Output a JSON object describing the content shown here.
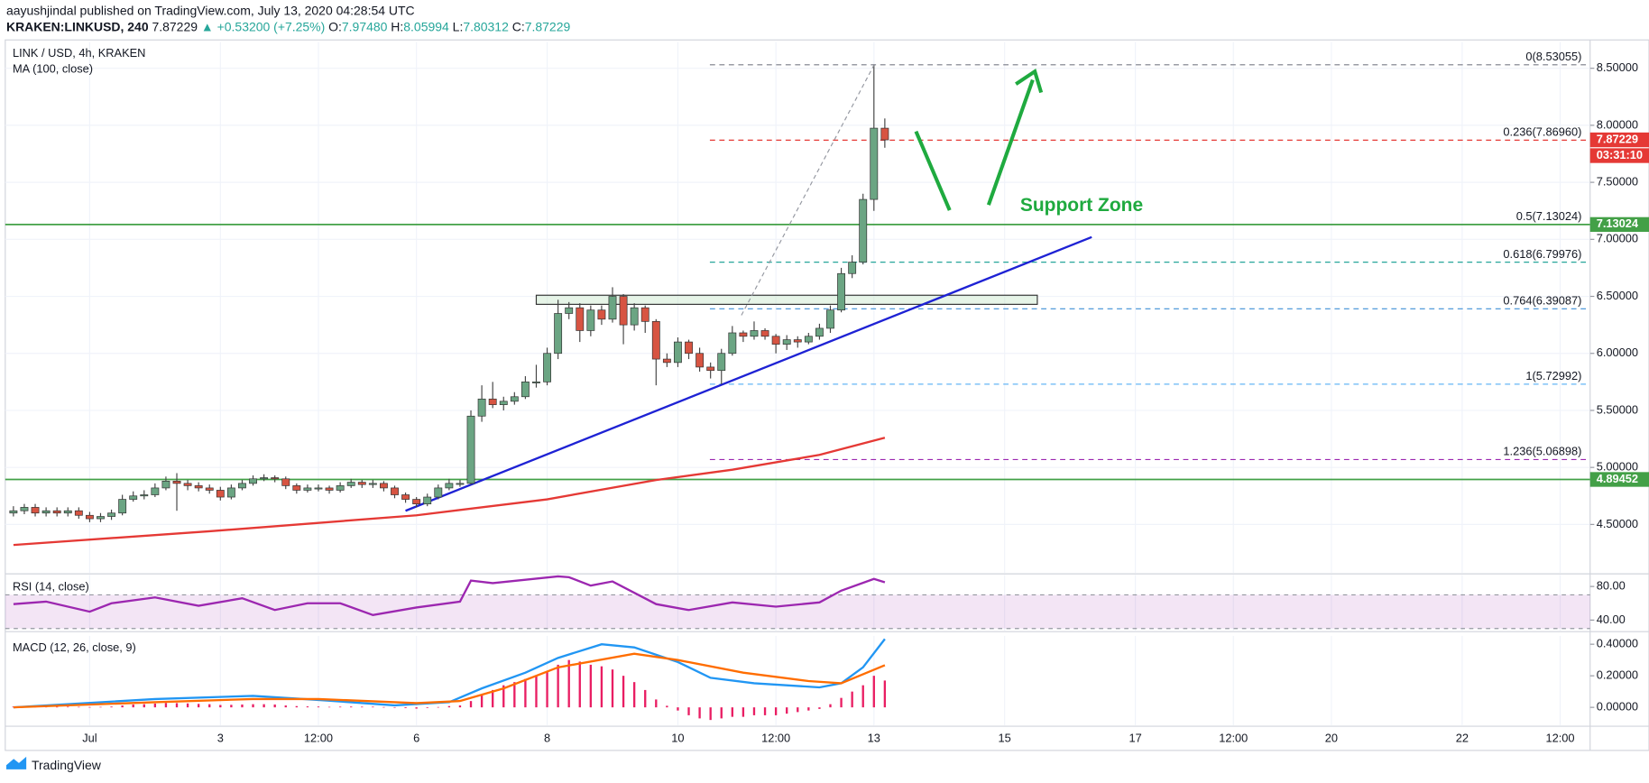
{
  "header": {
    "published": "aayushjindal published on TradingView.com, July 13, 2020 04:28:54 UTC",
    "symbol": "KRAKEN:LINKUSD, 240",
    "price": "7.87229",
    "change": "▲ +0.53200 (+7.25%)",
    "ohlc": [
      {
        "key": "O:",
        "value": "7.97480"
      },
      {
        "key": "H:",
        "value": "8.05994"
      },
      {
        "key": "L:",
        "value": "7.80312"
      },
      {
        "key": "C:",
        "value": "7.87229"
      }
    ]
  },
  "footer": "TradingView",
  "chart_data": [
    {
      "type": "candlestick",
      "title": "LINK / USD, 4h, KRAKEN",
      "annotation": "Support Zone",
      "up_color": "#6ba583",
      "down_color": "#d75442",
      "grid": true,
      "xlim": [
        -31,
        551
      ],
      "ylim": [
        4.076,
        8.73
      ],
      "xticks": [
        {
          "value": 0,
          "label": "Jul"
        },
        {
          "value": 48,
          "label": "3"
        },
        {
          "value": 84,
          "label": "12:00"
        },
        {
          "value": 120,
          "label": "6"
        },
        {
          "value": 168,
          "label": "8"
        },
        {
          "value": 216,
          "label": "10"
        },
        {
          "value": 252,
          "label": "12:00"
        },
        {
          "value": 288,
          "label": "13"
        },
        {
          "value": 336,
          "label": "15"
        },
        {
          "value": 384,
          "label": "17"
        },
        {
          "value": 420,
          "label": "12:00"
        },
        {
          "value": 456,
          "label": "20"
        },
        {
          "value": 504,
          "label": "22"
        },
        {
          "value": 540,
          "label": "12:00"
        }
      ],
      "yticks": [
        {
          "value": 4.5,
          "label": "4.50000"
        },
        {
          "value": 5,
          "label": "5.00000"
        },
        {
          "value": 5.5,
          "label": "5.50000"
        },
        {
          "value": 6,
          "label": "6.00000"
        },
        {
          "value": 6.5,
          "label": "6.50000"
        },
        {
          "value": 7,
          "label": "7.00000"
        },
        {
          "value": 7.5,
          "label": "7.50000"
        },
        {
          "value": 8,
          "label": "8.00000"
        },
        {
          "value": 8.5,
          "label": "8.50000"
        }
      ],
      "x": [
        -28,
        -24,
        -20,
        -16,
        -12,
        -8,
        -4,
        0,
        4,
        8,
        12,
        16,
        20,
        24,
        28,
        32,
        36,
        40,
        44,
        48,
        52,
        56,
        60,
        64,
        68,
        72,
        76,
        80,
        84,
        88,
        92,
        96,
        100,
        104,
        108,
        112,
        116,
        120,
        124,
        128,
        132,
        136,
        140,
        144,
        148,
        152,
        156,
        160,
        164,
        168,
        172,
        176,
        180,
        184,
        188,
        192,
        196,
        200,
        204,
        208,
        212,
        216,
        220,
        224,
        228,
        232,
        236,
        240,
        244,
        248,
        252,
        256,
        260,
        264,
        268,
        272,
        276,
        280,
        284,
        288,
        292
      ],
      "open": [
        4.6,
        4.62,
        4.65,
        4.6,
        4.62,
        4.6,
        4.62,
        4.58,
        4.55,
        4.57,
        4.6,
        4.72,
        4.75,
        4.76,
        4.82,
        4.88,
        4.86,
        4.84,
        4.82,
        4.8,
        4.74,
        4.82,
        4.86,
        4.9,
        4.91,
        4.9,
        4.84,
        4.8,
        4.82,
        4.82,
        4.8,
        4.84,
        4.87,
        4.85,
        4.86,
        4.82,
        4.76,
        4.72,
        4.68,
        4.74,
        4.82,
        4.86,
        4.86,
        5.45,
        5.6,
        5.55,
        5.58,
        5.62,
        5.75,
        5.75,
        6.0,
        6.35,
        6.4,
        6.2,
        6.38,
        6.3,
        6.5,
        6.25,
        6.4,
        6.28,
        5.95,
        5.92,
        6.1,
        6.0,
        5.88,
        5.85,
        6.0,
        6.18,
        6.15,
        6.2,
        6.15,
        6.08,
        6.12,
        6.1,
        6.15,
        6.22,
        6.38,
        6.7,
        6.8,
        7.35,
        7.9748
      ],
      "high": [
        4.66,
        4.68,
        4.68,
        4.65,
        4.65,
        4.65,
        4.65,
        4.61,
        4.6,
        4.63,
        4.76,
        4.79,
        4.8,
        4.86,
        4.92,
        4.95,
        4.89,
        4.87,
        4.85,
        4.83,
        4.85,
        4.89,
        4.93,
        4.94,
        4.93,
        4.92,
        4.86,
        4.85,
        4.85,
        4.84,
        4.87,
        4.9,
        4.89,
        4.89,
        4.88,
        4.84,
        4.78,
        4.74,
        4.77,
        4.85,
        4.9,
        4.89,
        5.5,
        5.72,
        5.75,
        5.62,
        5.66,
        5.8,
        5.9,
        6.05,
        6.47,
        6.45,
        6.44,
        6.42,
        6.42,
        6.58,
        6.52,
        6.44,
        6.42,
        6.3,
        6.0,
        6.14,
        6.12,
        6.05,
        5.92,
        6.04,
        6.24,
        6.2,
        6.28,
        6.22,
        6.17,
        6.16,
        6.15,
        6.18,
        6.26,
        6.42,
        6.75,
        6.86,
        7.4,
        8.53055,
        8.05994
      ],
      "low": [
        4.57,
        4.59,
        4.57,
        4.57,
        4.57,
        4.57,
        4.55,
        4.52,
        4.52,
        4.54,
        4.58,
        4.7,
        4.72,
        4.74,
        4.8,
        4.62,
        4.8,
        4.79,
        4.77,
        4.71,
        4.72,
        4.8,
        4.84,
        4.88,
        4.87,
        4.81,
        4.77,
        4.78,
        4.79,
        4.77,
        4.78,
        4.82,
        4.82,
        4.82,
        4.79,
        4.73,
        4.69,
        4.65,
        4.66,
        4.72,
        4.8,
        4.83,
        4.85,
        5.4,
        5.52,
        5.5,
        5.55,
        5.6,
        5.7,
        5.72,
        5.95,
        6.3,
        6.1,
        6.15,
        6.25,
        6.27,
        6.08,
        6.2,
        6.18,
        5.72,
        5.88,
        5.88,
        5.95,
        5.84,
        5.78,
        5.73,
        5.98,
        6.1,
        6.12,
        6.12,
        6.0,
        6.03,
        6.05,
        6.08,
        6.12,
        6.18,
        6.36,
        6.66,
        6.78,
        7.25,
        7.80312
      ],
      "close": [
        4.62,
        4.65,
        4.6,
        4.62,
        4.6,
        4.62,
        4.58,
        4.55,
        4.57,
        4.6,
        4.72,
        4.75,
        4.76,
        4.82,
        4.88,
        4.86,
        4.84,
        4.82,
        4.8,
        4.74,
        4.82,
        4.86,
        4.9,
        4.91,
        4.9,
        4.84,
        4.8,
        4.82,
        4.82,
        4.8,
        4.84,
        4.87,
        4.85,
        4.86,
        4.82,
        4.76,
        4.72,
        4.68,
        4.74,
        4.82,
        4.86,
        4.86,
        5.45,
        5.6,
        5.55,
        5.58,
        5.62,
        5.75,
        5.75,
        6.0,
        6.35,
        6.4,
        6.2,
        6.38,
        6.3,
        6.5,
        6.25,
        6.4,
        6.28,
        5.95,
        5.92,
        6.1,
        6.0,
        5.88,
        5.85,
        6.0,
        6.18,
        6.15,
        6.2,
        6.15,
        6.08,
        6.12,
        6.1,
        6.15,
        6.22,
        6.38,
        6.7,
        6.8,
        7.35,
        7.9748,
        7.87229
      ],
      "series": [
        {
          "type": "line",
          "name": "MA (100, close)",
          "color": "#e53935",
          "x": [
            -28,
            44,
            120,
            168,
            208,
            236,
            268,
            292
          ],
          "values": [
            4.32,
            4.44,
            4.58,
            4.72,
            4.89,
            4.98,
            5.11,
            5.26
          ]
        },
        {
          "type": "line",
          "color": "#1e22d4",
          "x": [
            116,
            368
          ],
          "values": [
            4.62,
            7.02
          ]
        }
      ],
      "zone": {
        "x": [
          164,
          348
        ],
        "values": [
          6.43,
          6.51
        ]
      },
      "hlines": [
        {
          "value": 7.13024,
          "color": "#43a047"
        },
        {
          "value": 4.89452,
          "color": "#43a047"
        }
      ],
      "fib": [
        {
          "label": "0(8.53055)",
          "value": 8.53055,
          "color": "#787b86"
        },
        {
          "label": "0.236(7.86960)",
          "value": 7.8696,
          "color": "#e53935"
        },
        {
          "label": "0.5(7.13024)",
          "value": 7.13024,
          "color": "#4caf50"
        },
        {
          "label": "0.618(6.79976)",
          "value": 6.79976,
          "color": "#26a69a"
        },
        {
          "label": "0.764(6.39087)",
          "value": 6.39087,
          "color": "#3d8fd6"
        },
        {
          "label": "1(5.72992)",
          "value": 5.72992,
          "color": "#64b5f6"
        },
        {
          "label": "1.236(5.06898)",
          "value": 5.06898,
          "color": "#9c27b0"
        }
      ],
      "price_labels": [
        {
          "value": 7.87229,
          "color": "#e53935",
          "countdown": "03:31:10"
        },
        {
          "value": 7.13024,
          "color": "#43a047"
        },
        {
          "value": 4.89452,
          "color": "#43a047"
        }
      ]
    },
    {
      "type": "line",
      "title": "RSI (14, close)",
      "ylim": [
        27.5,
        93.75
      ],
      "yticks": [
        {
          "value": 80,
          "label": "80.00"
        },
        {
          "value": 40,
          "label": "40.00"
        }
      ],
      "band": [
        30,
        70
      ],
      "series": [
        {
          "color": "#9c27b0",
          "x": [
            -28,
            -16,
            0,
            8,
            24,
            40,
            56,
            68,
            80,
            92,
            104,
            120,
            136,
            140,
            148,
            172,
            176,
            184,
            192,
            208,
            220,
            236,
            252,
            268,
            276,
            288,
            292
          ],
          "values": [
            59,
            62,
            50,
            60,
            67,
            57,
            66,
            52,
            60,
            60,
            46,
            55,
            62,
            87,
            84,
            92,
            91,
            81,
            86,
            59,
            52,
            61,
            56,
            61,
            75,
            89,
            85
          ]
        }
      ]
    },
    {
      "type": "macd",
      "title": "MACD (12, 26, close, 9)",
      "ylim": [
        -0.113,
        0.453
      ],
      "yticks": [
        {
          "value": 0.4,
          "label": "0.40000"
        },
        {
          "value": 0.2,
          "label": "0.20000"
        },
        {
          "value": 0,
          "label": "0.00000"
        }
      ],
      "series": [
        {
          "type": "bar",
          "color": "#e91e63",
          "x": [
            -28,
            -24,
            -20,
            -16,
            -12,
            -8,
            -4,
            0,
            4,
            8,
            12,
            16,
            20,
            24,
            28,
            32,
            36,
            40,
            44,
            48,
            52,
            56,
            60,
            64,
            68,
            72,
            76,
            80,
            84,
            88,
            92,
            96,
            100,
            104,
            108,
            112,
            116,
            120,
            124,
            128,
            132,
            136,
            140,
            144,
            148,
            152,
            156,
            160,
            164,
            168,
            172,
            176,
            180,
            184,
            188,
            192,
            196,
            200,
            204,
            208,
            212,
            216,
            220,
            224,
            228,
            232,
            236,
            240,
            244,
            248,
            252,
            256,
            260,
            264,
            268,
            272,
            276,
            280,
            284,
            288,
            292
          ],
          "values": [
            0.005,
            0.005,
            0.004,
            0.004,
            0.003,
            0.004,
            0.003,
            0.002,
            0.003,
            0.005,
            0.012,
            0.018,
            0.02,
            0.024,
            0.028,
            0.027,
            0.025,
            0.022,
            0.02,
            0.015,
            0.016,
            0.018,
            0.02,
            0.02,
            0.018,
            0.012,
            0.008,
            0.006,
            0.005,
            0.003,
            0.004,
            0.005,
            0.004,
            0.004,
            0.002,
            -0.002,
            -0.005,
            -0.008,
            -0.004,
            0.002,
            0.008,
            0.012,
            0.04,
            0.08,
            0.11,
            0.14,
            0.16,
            0.18,
            0.2,
            0.23,
            0.27,
            0.3,
            0.29,
            0.27,
            0.26,
            0.24,
            0.2,
            0.16,
            0.11,
            0.05,
            0.01,
            -0.02,
            -0.05,
            -0.07,
            -0.08,
            -0.07,
            -0.06,
            -0.06,
            -0.05,
            -0.05,
            -0.05,
            -0.04,
            -0.03,
            -0.02,
            -0.01,
            0.02,
            0.06,
            0.1,
            0.14,
            0.2,
            0.17
          ]
        },
        {
          "type": "line",
          "color": "#2196f3",
          "x": [
            -28,
            24,
            60,
            84,
            112,
            132,
            144,
            160,
            172,
            188,
            200,
            216,
            228,
            244,
            268,
            276,
            284,
            292
          ],
          "values": [
            0,
            0.053,
            0.073,
            0.047,
            0.013,
            0.033,
            0.12,
            0.22,
            0.313,
            0.4,
            0.38,
            0.287,
            0.187,
            0.153,
            0.127,
            0.153,
            0.253,
            0.433
          ]
        },
        {
          "type": "line",
          "color": "#ff6d00",
          "x": [
            -28,
            24,
            60,
            84,
            120,
            136,
            152,
            172,
            200,
            216,
            240,
            264,
            276,
            292
          ],
          "values": [
            0,
            0.033,
            0.053,
            0.053,
            0.027,
            0.04,
            0.12,
            0.253,
            0.34,
            0.3,
            0.22,
            0.167,
            0.153,
            0.267
          ]
        }
      ]
    }
  ]
}
